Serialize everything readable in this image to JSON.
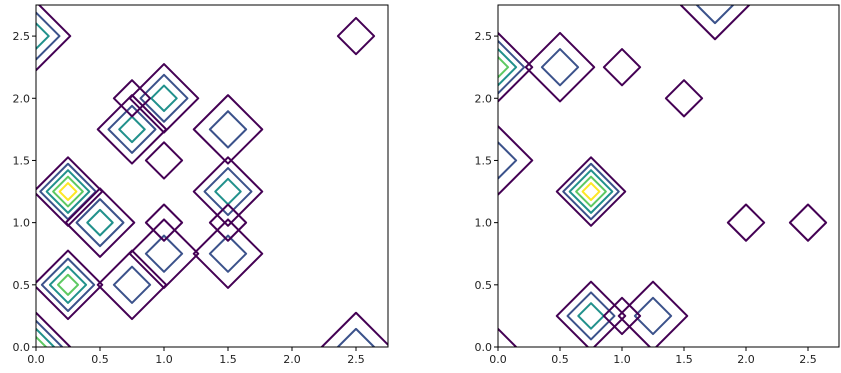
{
  "chart_data": [
    {
      "type": "contour",
      "xlim": [
        0,
        2.75
      ],
      "ylim": [
        0,
        2.75
      ],
      "xticks": [
        "0.0",
        "0.5",
        "1.0",
        "1.5",
        "2.0",
        "2.5"
      ],
      "yticks": [
        "0.0",
        "0.5",
        "1.0",
        "1.5",
        "2.0",
        "2.5"
      ],
      "levels": [
        "#440154",
        "#3b528b",
        "#21918c",
        "#5ec962",
        "#fde725"
      ],
      "peaks": [
        {
          "x": 0.25,
          "y": 1.25,
          "peak": 5
        },
        {
          "x": 0.5,
          "y": 1.0,
          "peak": 3
        },
        {
          "x": 0.25,
          "y": 0.5,
          "peak": 4
        },
        {
          "x": 0.75,
          "y": 1.75,
          "peak": 3
        },
        {
          "x": 1.0,
          "y": 2.0,
          "peak": 3
        },
        {
          "x": 1.5,
          "y": 1.25,
          "peak": 3
        },
        {
          "x": 1.5,
          "y": 1.75,
          "peak": 2
        },
        {
          "x": 1.5,
          "y": 0.75,
          "peak": 2
        },
        {
          "x": 1.0,
          "y": 0.75,
          "peak": 2
        },
        {
          "x": 0.75,
          "y": 0.5,
          "peak": 2
        },
        {
          "x": 0.0,
          "y": 2.5,
          "peak": 3
        },
        {
          "x": 0.0,
          "y": 0.0,
          "peak": 4
        },
        {
          "x": 2.5,
          "y": 0.0,
          "peak": 2
        },
        {
          "x": 1.0,
          "y": 1.0,
          "peak": 1
        },
        {
          "x": 1.5,
          "y": 1.0,
          "peak": 1
        },
        {
          "x": 0.75,
          "y": 2.0,
          "peak": 1
        },
        {
          "x": 1.0,
          "y": 1.5,
          "peak": 1
        },
        {
          "x": 2.5,
          "y": 2.5,
          "peak": 1
        }
      ]
    },
    {
      "type": "contour",
      "xlim": [
        0,
        2.75
      ],
      "ylim": [
        0,
        2.75
      ],
      "xticks": [
        "0.0",
        "0.5",
        "1.0",
        "1.5",
        "2.0",
        "2.5"
      ],
      "yticks": [
        "0.0",
        "0.5",
        "1.0",
        "1.5",
        "2.0",
        "2.5"
      ],
      "levels": [
        "#440154",
        "#3b528b",
        "#21918c",
        "#5ec962",
        "#fde725"
      ],
      "peaks": [
        {
          "x": 0.75,
          "y": 1.25,
          "peak": 5
        },
        {
          "x": 0.0,
          "y": 2.25,
          "peak": 4
        },
        {
          "x": 0.0,
          "y": 1.5,
          "peak": 2
        },
        {
          "x": 0.5,
          "y": 2.25,
          "peak": 2
        },
        {
          "x": 0.75,
          "y": 0.25,
          "peak": 3
        },
        {
          "x": 1.25,
          "y": 0.25,
          "peak": 2
        },
        {
          "x": 1.0,
          "y": 0.25,
          "peak": 1
        },
        {
          "x": 1.5,
          "y": 2.0,
          "peak": 1
        },
        {
          "x": 1.75,
          "y": 2.75,
          "peak": 2
        },
        {
          "x": 1.0,
          "y": 2.25,
          "peak": 1
        },
        {
          "x": 2.5,
          "y": 1.0,
          "peak": 1
        },
        {
          "x": 2.0,
          "y": 1.0,
          "peak": 1
        },
        {
          "x": 0.0,
          "y": 0.0,
          "peak": 1
        }
      ]
    }
  ]
}
